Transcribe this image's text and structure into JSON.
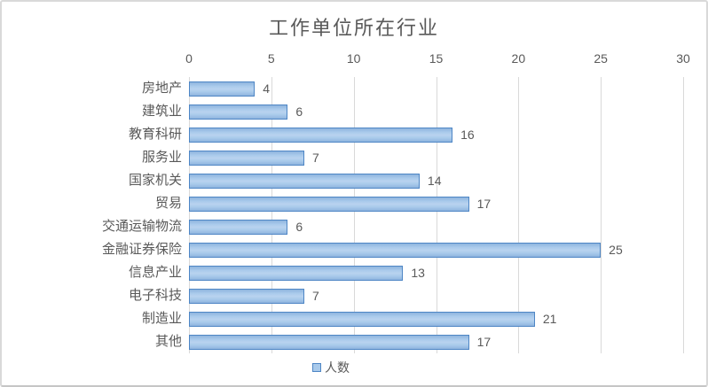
{
  "chart_data": {
    "type": "bar",
    "orientation": "horizontal",
    "title": "工作单位所在行业",
    "categories": [
      "房地产",
      "建筑业",
      "教育科研",
      "服务业",
      "国家机关",
      "贸易",
      "交通运输物流",
      "金融证券保险",
      "信息产业",
      "电子科技",
      "制造业",
      "其他"
    ],
    "values": [
      4,
      6,
      16,
      7,
      14,
      17,
      6,
      25,
      13,
      7,
      21,
      17
    ],
    "series_name": "人数",
    "xlabel": "",
    "ylabel": "",
    "xlim": [
      0,
      30
    ],
    "xticks": [
      0,
      5,
      10,
      15,
      20,
      25,
      30
    ],
    "axis_position": "top",
    "grid": "vertical-only",
    "value_labels": true,
    "legend_position": "bottom-center",
    "colors": {
      "bar_fill": "#A9CAEB",
      "bar_fill_highlight": "#B9D3EF",
      "bar_border": "#4E86C5",
      "text": "#595959",
      "gridline": "#D9D9D9",
      "background": "#FFFFFF",
      "chart_border": "#D9D9D9"
    }
  },
  "legend": {
    "label": "人数"
  }
}
